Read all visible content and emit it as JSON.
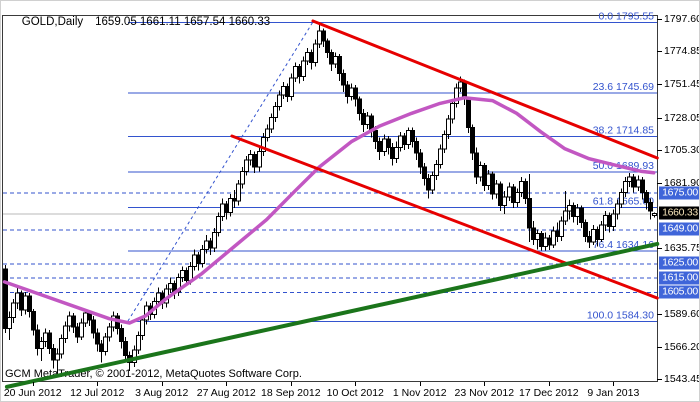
{
  "window": {
    "title_symbol": "GOLD,Daily",
    "title_ohlc": "1659.05 1661.11 1657.54 1660.33"
  },
  "footer": {
    "copyright": "GCM MetaTrader, © 2001-2012, MetaQuotes Software Corp."
  },
  "colors": {
    "background": "#FFFFFF",
    "frame": "#3a3a3a",
    "blue_line": "#3353CE",
    "blue_box": "#3F65D9",
    "box_text": "#FFFFFF",
    "current_box_bg": "#000000",
    "current_box_text": "#F5E3B8",
    "current_line": "#B8B8B8",
    "ma": "#C257C2",
    "trend_red": "#E60000",
    "trend_green": "#1B751B",
    "bull_body": "#FFFFFF",
    "bear_body": "#000000",
    "candle_outline": "#000000",
    "text": "#000000"
  },
  "axis": {
    "price_ticks": [
      1797.6,
      1774.85,
      1751.45,
      1728.05,
      1705.3,
      1681.9,
      1635.75,
      1589.6,
      1566.2,
      1543.45
    ],
    "dates": [
      {
        "index": 7,
        "label": "20 Jun 2012"
      },
      {
        "index": 23,
        "label": "12 Jul 2012"
      },
      {
        "index": 39,
        "label": "3 Aug 2012"
      },
      {
        "index": 55,
        "label": "27 Aug 2012"
      },
      {
        "index": 71,
        "label": "18 Sep 2012"
      },
      {
        "index": 87,
        "label": "10 Oct 2012"
      },
      {
        "index": 103,
        "label": "1 Nov 2012"
      },
      {
        "index": 119,
        "label": "23 Nov 2012"
      },
      {
        "index": 135,
        "label": "17 Dec 2012"
      },
      {
        "index": 151,
        "label": "9 Jan 2013"
      }
    ]
  },
  "chart_data": {
    "type": "candlestick",
    "symbol": "GOLD",
    "timeframe": "Daily",
    "quote": {
      "open": 1659.05,
      "high": 1661.11,
      "low": 1657.54,
      "close": 1660.33
    },
    "current_price": 1660.33,
    "ylim": [
      1543.45,
      1797.6
    ],
    "x_range_labels": [
      "20 Jun 2012",
      "9 Jan 2013"
    ],
    "grid": false,
    "horizontal_lines": [
      {
        "price": 1675.0,
        "style": "dashed"
      },
      {
        "price": 1649.0,
        "style": "dashed"
      },
      {
        "price": 1625.0,
        "style": "dashed"
      },
      {
        "price": 1615.0,
        "style": "dashed"
      },
      {
        "price": 1605.0,
        "style": "dashed"
      }
    ],
    "fibonacci": {
      "start_index": 30.6,
      "high_index": 76.5,
      "low_price": 1584.3,
      "high_price": 1795.55,
      "levels": [
        {
          "label": "0.0",
          "price": 1795.55
        },
        {
          "label": "23.6",
          "price": 1745.69
        },
        {
          "label": "38.2",
          "price": 1714.85
        },
        {
          "label": "50.0",
          "price": 1689.93
        },
        {
          "label": "61.8",
          "price": 1665.0
        },
        {
          "label": "76.4",
          "price": 1634.16
        },
        {
          "label": "100.0",
          "price": 1584.3
        }
      ]
    },
    "trendlines": [
      {
        "name": "downtrend-upper",
        "color": "#E60000",
        "width": 3,
        "points": [
          [
            76.5,
            1796.2
          ],
          [
            161.9,
            1699.5
          ]
        ]
      },
      {
        "name": "downtrend-lower",
        "color": "#E60000",
        "width": 3,
        "points": [
          [
            56.4,
            1715.0
          ],
          [
            161.9,
            1600.6
          ]
        ]
      },
      {
        "name": "uptrend-support",
        "color": "#1B751B",
        "width": 4,
        "points": [
          [
            0.6,
            1537.9
          ],
          [
            161.9,
            1638.8
          ]
        ]
      }
    ],
    "moving_average": {
      "label": "smoothed trend (violet)",
      "points": [
        [
          0,
          1612
        ],
        [
          9,
          1603
        ],
        [
          19,
          1593
        ],
        [
          26,
          1586
        ],
        [
          31,
          1583
        ],
        [
          35,
          1588
        ],
        [
          40,
          1600
        ],
        [
          49,
          1618
        ],
        [
          57,
          1637
        ],
        [
          65,
          1656
        ],
        [
          72,
          1676
        ],
        [
          78,
          1693
        ],
        [
          86,
          1711
        ],
        [
          93,
          1722
        ],
        [
          101,
          1731
        ],
        [
          108,
          1738
        ],
        [
          114,
          1742
        ],
        [
          121,
          1740
        ],
        [
          127,
          1731
        ],
        [
          133,
          1718
        ],
        [
          139,
          1706
        ],
        [
          145,
          1699
        ],
        [
          152,
          1694
        ],
        [
          158,
          1690
        ],
        [
          161,
          1689
        ]
      ]
    },
    "candles": [
      [
        1621,
        1624,
        1576,
        1579
      ],
      [
        1579,
        1591,
        1571,
        1587
      ],
      [
        1587,
        1600,
        1583,
        1597
      ],
      [
        1597,
        1608,
        1593,
        1604
      ],
      [
        1604,
        1606,
        1588,
        1592
      ],
      [
        1592,
        1605,
        1589,
        1602
      ],
      [
        1602,
        1604,
        1587,
        1591
      ],
      [
        1591,
        1593,
        1574,
        1578
      ],
      [
        1578,
        1582,
        1560,
        1565
      ],
      [
        1565,
        1573,
        1556,
        1570
      ],
      [
        1570,
        1579,
        1566,
        1576
      ],
      [
        1576,
        1578,
        1561,
        1565
      ],
      [
        1565,
        1568,
        1551,
        1557
      ],
      [
        1557,
        1565,
        1547,
        1561
      ],
      [
        1561,
        1575,
        1558,
        1572
      ],
      [
        1572,
        1584,
        1569,
        1581
      ],
      [
        1581,
        1591,
        1577,
        1588
      ],
      [
        1588,
        1590,
        1576,
        1580
      ],
      [
        1580,
        1583,
        1569,
        1573
      ],
      [
        1573,
        1586,
        1571,
        1583
      ],
      [
        1583,
        1593,
        1580,
        1590
      ],
      [
        1590,
        1592,
        1581,
        1585
      ],
      [
        1585,
        1588,
        1572,
        1576
      ],
      [
        1576,
        1579,
        1563,
        1568
      ],
      [
        1568,
        1571,
        1555,
        1563
      ],
      [
        1563,
        1576,
        1560,
        1573
      ],
      [
        1573,
        1583,
        1570,
        1580
      ],
      [
        1580,
        1591,
        1577,
        1588
      ],
      [
        1588,
        1590,
        1575,
        1579
      ],
      [
        1579,
        1582,
        1565,
        1570
      ],
      [
        1570,
        1573,
        1557,
        1560
      ],
      [
        1560,
        1563,
        1549,
        1555
      ],
      [
        1555,
        1567,
        1552,
        1564
      ],
      [
        1564,
        1577,
        1561,
        1574
      ],
      [
        1574,
        1588,
        1571,
        1585
      ],
      [
        1585,
        1598,
        1582,
        1595
      ],
      [
        1595,
        1597,
        1585,
        1589
      ],
      [
        1589,
        1601,
        1586,
        1598
      ],
      [
        1598,
        1608,
        1595,
        1604
      ],
      [
        1604,
        1606,
        1593,
        1597
      ],
      [
        1597,
        1610,
        1594,
        1607
      ],
      [
        1607,
        1615,
        1604,
        1611
      ],
      [
        1611,
        1613,
        1600,
        1605
      ],
      [
        1605,
        1618,
        1602,
        1615
      ],
      [
        1615,
        1623,
        1612,
        1620
      ],
      [
        1620,
        1622,
        1609,
        1613
      ],
      [
        1613,
        1626,
        1610,
        1623
      ],
      [
        1623,
        1635,
        1620,
        1631
      ],
      [
        1631,
        1633,
        1620,
        1625
      ],
      [
        1625,
        1638,
        1622,
        1635
      ],
      [
        1635,
        1645,
        1632,
        1641
      ],
      [
        1641,
        1643,
        1631,
        1636
      ],
      [
        1636,
        1650,
        1633,
        1647
      ],
      [
        1647,
        1661,
        1644,
        1658
      ],
      [
        1658,
        1671,
        1655,
        1667
      ],
      [
        1667,
        1669,
        1656,
        1661
      ],
      [
        1661,
        1674,
        1658,
        1671
      ],
      [
        1671,
        1677,
        1664,
        1669
      ],
      [
        1669,
        1684,
        1666,
        1681
      ],
      [
        1681,
        1693,
        1678,
        1690
      ],
      [
        1690,
        1701,
        1687,
        1698
      ],
      [
        1698,
        1705,
        1694,
        1702
      ],
      [
        1702,
        1704,
        1689,
        1693
      ],
      [
        1693,
        1707,
        1690,
        1704
      ],
      [
        1704,
        1717,
        1701,
        1714
      ],
      [
        1714,
        1723,
        1711,
        1720
      ],
      [
        1720,
        1731,
        1717,
        1728
      ],
      [
        1728,
        1739,
        1725,
        1736
      ],
      [
        1736,
        1747,
        1733,
        1744
      ],
      [
        1744,
        1753,
        1741,
        1750
      ],
      [
        1750,
        1752,
        1739,
        1743
      ],
      [
        1743,
        1759,
        1740,
        1756
      ],
      [
        1756,
        1767,
        1753,
        1764
      ],
      [
        1764,
        1766,
        1752,
        1757
      ],
      [
        1757,
        1771,
        1754,
        1768
      ],
      [
        1768,
        1777,
        1765,
        1774
      ],
      [
        1774,
        1776,
        1762,
        1767
      ],
      [
        1767,
        1783,
        1764,
        1780
      ],
      [
        1780,
        1795.55,
        1777,
        1789
      ],
      [
        1789,
        1791,
        1778,
        1782
      ],
      [
        1782,
        1784,
        1770,
        1774
      ],
      [
        1774,
        1776,
        1761,
        1766
      ],
      [
        1766,
        1774,
        1763,
        1771
      ],
      [
        1771,
        1773,
        1754,
        1759
      ],
      [
        1759,
        1762,
        1746,
        1751
      ],
      [
        1751,
        1754,
        1738,
        1743
      ],
      [
        1743,
        1752,
        1740,
        1749
      ],
      [
        1749,
        1751,
        1736,
        1741
      ],
      [
        1741,
        1743,
        1726,
        1731
      ],
      [
        1731,
        1734,
        1718,
        1723
      ],
      [
        1723,
        1732,
        1720,
        1729
      ],
      [
        1729,
        1731,
        1714,
        1719
      ],
      [
        1719,
        1722,
        1706,
        1711
      ],
      [
        1711,
        1714,
        1698,
        1704
      ],
      [
        1704,
        1716,
        1701,
        1713
      ],
      [
        1713,
        1715,
        1702,
        1707
      ],
      [
        1707,
        1710,
        1694,
        1699
      ],
      [
        1699,
        1711,
        1696,
        1707
      ],
      [
        1707,
        1718,
        1704,
        1715
      ],
      [
        1715,
        1717,
        1705,
        1709
      ],
      [
        1709,
        1721,
        1706,
        1719
      ],
      [
        1719,
        1721,
        1707,
        1711
      ],
      [
        1711,
        1714,
        1698,
        1703
      ],
      [
        1703,
        1706,
        1688,
        1693
      ],
      [
        1693,
        1696,
        1680,
        1685
      ],
      [
        1685,
        1688,
        1671,
        1677
      ],
      [
        1677,
        1690,
        1674,
        1687
      ],
      [
        1687,
        1698,
        1684,
        1695
      ],
      [
        1695,
        1709,
        1692,
        1706
      ],
      [
        1706,
        1719,
        1703,
        1716
      ],
      [
        1716,
        1730,
        1713,
        1727
      ],
      [
        1727,
        1741,
        1724,
        1738
      ],
      [
        1738,
        1752,
        1735,
        1749
      ],
      [
        1749,
        1757,
        1746,
        1753
      ],
      [
        1753,
        1755,
        1737,
        1741
      ],
      [
        1741,
        1743,
        1717,
        1721
      ],
      [
        1721,
        1723,
        1698,
        1703
      ],
      [
        1703,
        1707,
        1681,
        1686
      ],
      [
        1686,
        1697,
        1683,
        1694
      ],
      [
        1694,
        1696,
        1676,
        1680
      ],
      [
        1680,
        1691,
        1677,
        1688
      ],
      [
        1688,
        1690,
        1670,
        1674
      ],
      [
        1674,
        1684,
        1671,
        1681
      ],
      [
        1681,
        1683,
        1662,
        1666
      ],
      [
        1666,
        1676,
        1660,
        1672
      ],
      [
        1672,
        1682,
        1669,
        1679
      ],
      [
        1679,
        1681,
        1664,
        1668
      ],
      [
        1668,
        1678,
        1665,
        1675
      ],
      [
        1675,
        1686,
        1672,
        1683
      ],
      [
        1683,
        1685,
        1667,
        1671
      ],
      [
        1671,
        1688,
        1640,
        1650
      ],
      [
        1650,
        1655,
        1638,
        1642
      ],
      [
        1642,
        1649,
        1635,
        1646
      ],
      [
        1646,
        1648,
        1634.2,
        1637
      ],
      [
        1637,
        1647,
        1634,
        1643
      ],
      [
        1643,
        1645,
        1634.5,
        1638
      ],
      [
        1638,
        1651,
        1636,
        1648
      ],
      [
        1648,
        1654,
        1640,
        1644
      ],
      [
        1644,
        1658,
        1641,
        1655
      ],
      [
        1655,
        1676,
        1652,
        1662
      ],
      [
        1662,
        1670,
        1656,
        1666
      ],
      [
        1666,
        1668,
        1654,
        1658
      ],
      [
        1658,
        1667,
        1652,
        1664
      ],
      [
        1664,
        1666,
        1650,
        1654
      ],
      [
        1654,
        1656,
        1640,
        1644
      ],
      [
        1644,
        1648,
        1636,
        1640
      ],
      [
        1640,
        1652,
        1638,
        1649
      ],
      [
        1649,
        1651,
        1637,
        1642
      ],
      [
        1642,
        1655,
        1640,
        1652
      ],
      [
        1652,
        1662,
        1648,
        1659
      ],
      [
        1659,
        1661,
        1647,
        1651
      ],
      [
        1651,
        1663,
        1648,
        1660
      ],
      [
        1660,
        1670,
        1656,
        1667
      ],
      [
        1667,
        1678,
        1664,
        1675
      ],
      [
        1675,
        1686,
        1672,
        1683
      ],
      [
        1683,
        1689,
        1679,
        1686
      ],
      [
        1686,
        1688,
        1675,
        1679
      ],
      [
        1679,
        1687,
        1676,
        1684
      ],
      [
        1684,
        1686,
        1670,
        1675
      ],
      [
        1675,
        1677,
        1663,
        1668
      ],
      [
        1668,
        1671,
        1656,
        1662
      ],
      [
        1659.05,
        1661.11,
        1657.54,
        1660.33
      ]
    ]
  }
}
